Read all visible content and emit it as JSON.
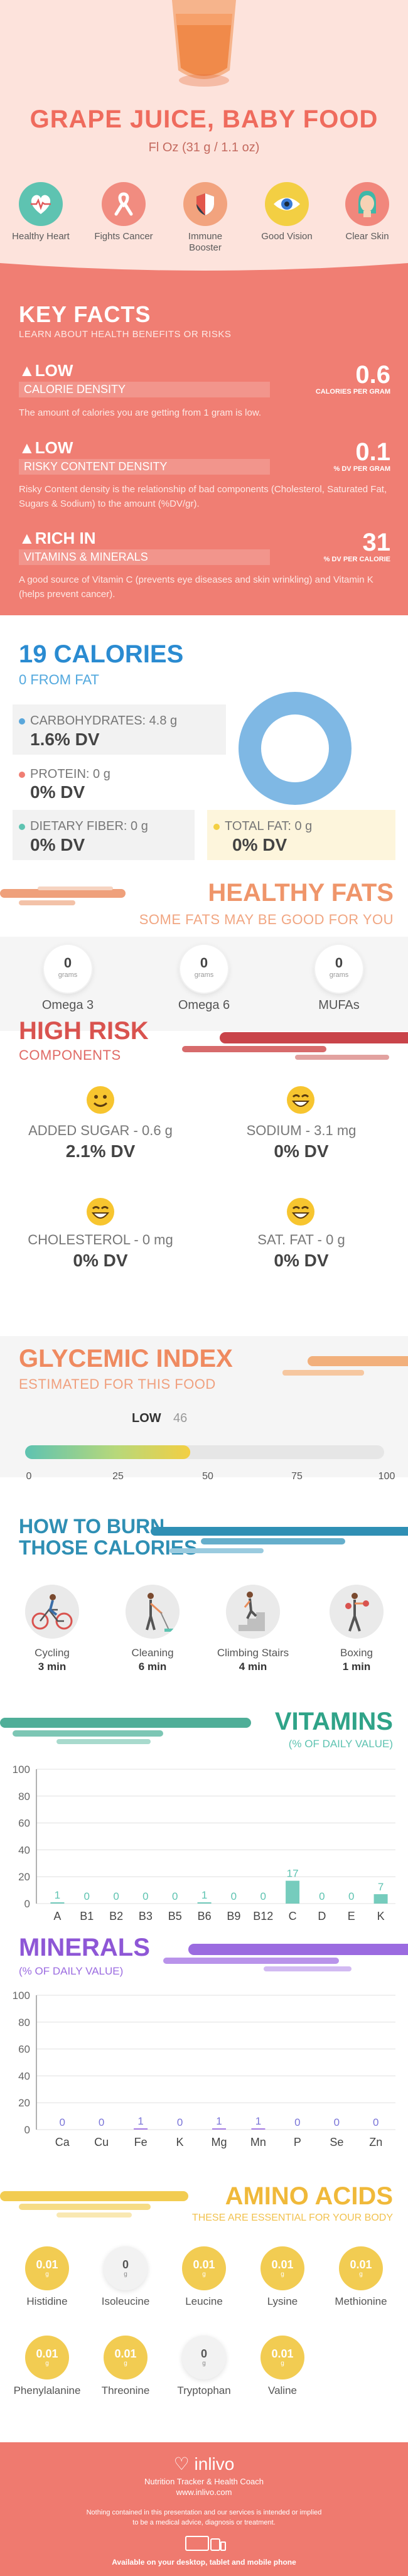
{
  "header": {
    "title": "GRAPE JUICE, BABY FOOD",
    "serving": "Fl Oz (31 g / 1.1 oz)",
    "benefits": [
      {
        "label": "Healthy Heart",
        "icon": "heart-monitor-icon",
        "color": "#5ec3b1"
      },
      {
        "label": "Fights Cancer",
        "icon": "cancer-ribbon-icon",
        "color": "#f18c80"
      },
      {
        "label": "Immune Booster",
        "icon": "shield-icon",
        "color": "#f2a37e"
      },
      {
        "label": "Good Vision",
        "icon": "eye-icon",
        "color": "#f3cf43"
      },
      {
        "label": "Clear Skin",
        "icon": "face-icon",
        "color": "#f1877c"
      }
    ]
  },
  "key_facts": {
    "title": "KEY FACTS",
    "subtitle": "LEARN ABOUT HEALTH BENEFITS OR RISKS",
    "items": [
      {
        "level": "LOW",
        "name": "CALORIE DENSITY",
        "value": "0.6",
        "unit": "CALORIES PER GRAM",
        "desc": "The amount of calories you are getting from 1 gram is low."
      },
      {
        "level": "LOW",
        "name": "RISKY CONTENT DENSITY",
        "value": "0.1",
        "unit": "% DV PER GRAM",
        "desc": "Risky Content density is the relationship of bad components (Cholesterol, Saturated Fat, Sugars & Sodium) to the amount (%DV/gr)."
      },
      {
        "level": "RICH  IN",
        "name": "VITAMINS & MINERALS",
        "value": "31",
        "unit": "% DV PER CALORIE",
        "desc": "A good source of Vitamin C (prevents eye diseases and skin wrinkling) and Vitamin K (helps prevent cancer)."
      }
    ]
  },
  "calories": {
    "title": "19 CALORIES",
    "subtitle": "0 FROM FAT",
    "nutrients": [
      {
        "label": "CARBOHYDRATES: 4.8 g",
        "value": "1.6% DV",
        "color": "#5aa7db"
      },
      {
        "label": "PROTEIN: 0 g",
        "value": "0% DV",
        "color": "#f07e73"
      },
      {
        "label": "DIETARY FIBER: 0 g",
        "value": "0% DV",
        "color": "#5ec3b1"
      },
      {
        "label": "TOTAL FAT: 0 g",
        "value": "0% DV",
        "color": "#f3cf43"
      }
    ],
    "donut_color": "#7fb8e4"
  },
  "fats": {
    "title": "HEALTHY FATS",
    "subtitle": "SOME FATS MAY BE GOOD FOR YOU",
    "items": [
      {
        "value": "0",
        "unit": "grams",
        "label": "Omega 3"
      },
      {
        "value": "0",
        "unit": "grams",
        "label": "Omega 6"
      },
      {
        "value": "0",
        "unit": "grams",
        "label": "MUFAs"
      }
    ]
  },
  "risk": {
    "title": "HIGH RISK",
    "subtitle": "COMPONENTS",
    "items": [
      {
        "label": "ADDED SUGAR - 0.6 g",
        "value": "2.1% DV",
        "icon": "smiley-icon"
      },
      {
        "label": "SODIUM - 3.1 mg",
        "value": "0% DV",
        "icon": "grinning-face-icon"
      },
      {
        "label": "CHOLESTEROL - 0 mg",
        "value": "0% DV",
        "icon": "grinning-face-icon"
      },
      {
        "label": "SAT. FAT - 0 g",
        "value": "0% DV",
        "icon": "grinning-face-icon"
      }
    ]
  },
  "glycemic": {
    "title": "GLYCEMIC INDEX",
    "subtitle": "ESTIMATED FOR THIS FOOD",
    "level": "LOW",
    "value": 46,
    "value_label": "46",
    "ticks": [
      "0",
      "25",
      "50",
      "75",
      "100"
    ]
  },
  "burn": {
    "title_line1": "HOW TO BURN",
    "title_line2": "THOSE CALORIES",
    "items": [
      {
        "name": "Cycling",
        "time": "3 min",
        "icon": "cycling-icon"
      },
      {
        "name": "Cleaning",
        "time": "6 min",
        "icon": "cleaning-icon"
      },
      {
        "name": "Climbing Stairs",
        "time": "4 min",
        "icon": "stairs-icon"
      },
      {
        "name": "Boxing",
        "time": "1 min",
        "icon": "boxing-icon"
      }
    ]
  },
  "vitamins": {
    "title": "VITAMINS",
    "subtitle": "(% OF DAILY VALUE)"
  },
  "minerals": {
    "title": "MINERALS",
    "subtitle": "(% OF DAILY VALUE)"
  },
  "chart_data": [
    {
      "type": "bar",
      "title": "VITAMINS",
      "subtitle": "(% OF DAILY VALUE)",
      "categories": [
        "A",
        "B1",
        "B2",
        "B3",
        "B5",
        "B6",
        "B9",
        "B12",
        "C",
        "D",
        "E",
        "K"
      ],
      "values": [
        1,
        0,
        0,
        0,
        0,
        1,
        0,
        0,
        17,
        0,
        0,
        7
      ],
      "value_labels": [
        "1",
        "0",
        "0",
        "0",
        "0",
        "1",
        "0",
        "0",
        "17",
        "0",
        "0",
        "7"
      ],
      "ylim": [
        0,
        100
      ],
      "yticks": [
        "100",
        "80",
        "60",
        "40",
        "20",
        "0"
      ],
      "color": "#5ec3b1",
      "label_color": "#5ec3b1"
    },
    {
      "type": "bar",
      "title": "MINERALS",
      "subtitle": "(% OF DAILY VALUE)",
      "categories": [
        "Ca",
        "Cu",
        "Fe",
        "K",
        "Mg",
        "Mn",
        "P",
        "Se",
        "Zn"
      ],
      "values": [
        0,
        0,
        1,
        0,
        1,
        1,
        0,
        0,
        0
      ],
      "value_labels": [
        "0",
        "0",
        "1",
        "0",
        "1",
        "1",
        "0",
        "0",
        "0"
      ],
      "ylim": [
        0,
        100
      ],
      "yticks": [
        "100",
        "80",
        "60",
        "40",
        "20",
        "0"
      ],
      "color": "#9b6be0",
      "label_color": "#7a75d8"
    }
  ],
  "amino": {
    "title": "AMINO ACIDS",
    "subtitle": "THESE ARE ESSENTIAL FOR YOUR BODY",
    "items": [
      {
        "value": "0.01",
        "unit": "g",
        "label": "Histidine",
        "active": true
      },
      {
        "value": "0",
        "unit": "g",
        "label": "Isoleucine",
        "active": false
      },
      {
        "value": "0.01",
        "unit": "g",
        "label": "Leucine",
        "active": true
      },
      {
        "value": "0.01",
        "unit": "g",
        "label": "Lysine",
        "active": true
      },
      {
        "value": "0.01",
        "unit": "g",
        "label": "Methionine",
        "active": true
      },
      {
        "value": "0.01",
        "unit": "g",
        "label": "Phenylalanine",
        "active": true
      },
      {
        "value": "0.01",
        "unit": "g",
        "label": "Threonine",
        "active": true
      },
      {
        "value": "0",
        "unit": "g",
        "label": "Tryptophan",
        "active": false
      },
      {
        "value": "0.01",
        "unit": "g",
        "label": "Valine",
        "active": true
      }
    ]
  },
  "footer": {
    "brand": "inlivo",
    "tagline": "Nutrition Tracker & Health Coach",
    "url": "www.inlivo.com",
    "disclaimer": "Nothing contained in this presentation and our services is intended or implied to be a medical advice, diagnosis or treatment.",
    "available": "Available on your desktop, tablet and mobile phone"
  }
}
